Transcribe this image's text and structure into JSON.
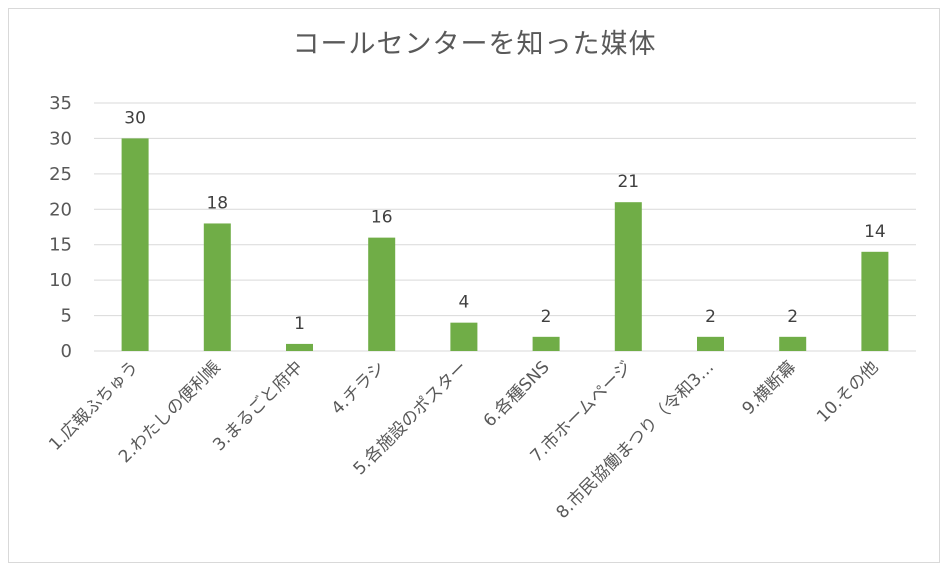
{
  "chart_data": {
    "type": "bar",
    "title": "コールセンターを知った媒体",
    "categories": [
      "1.広報ふちゅう",
      "2.わたしの便利帳",
      "3.まるごと府中",
      "4.チラシ",
      "5.各施設のポスター",
      "6.各種SNS",
      "7.市ホームページ",
      "8.市民協働まつり（令和3…",
      "9.横断幕",
      "10.その他"
    ],
    "values": [
      30,
      18,
      1,
      16,
      4,
      2,
      21,
      2,
      2,
      14
    ],
    "data_labels": [
      "30",
      "18",
      "1",
      "16",
      "4",
      "2",
      "21",
      "2",
      "2",
      "14"
    ],
    "yticks": [
      "0",
      "5",
      "10",
      "15",
      "20",
      "25",
      "30",
      "35"
    ],
    "ylim": [
      0,
      35
    ],
    "xlabel": "",
    "ylabel": "",
    "grid": true,
    "bar_color": "#70ad47",
    "grid_color": "#d9d9d9",
    "text_color": "#595959"
  }
}
